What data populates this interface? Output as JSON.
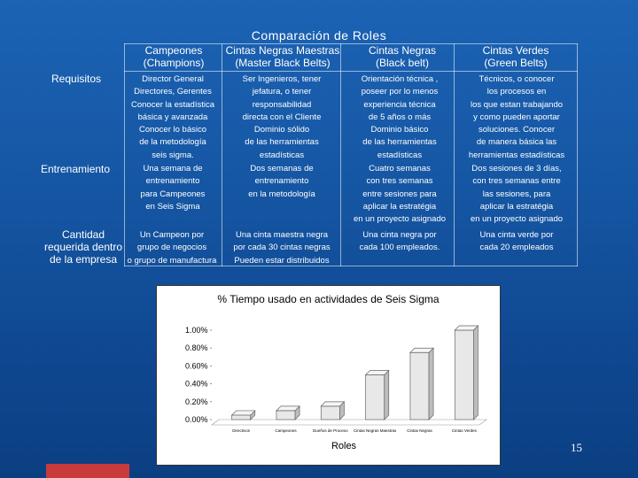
{
  "title": "Comparación de Roles",
  "headers": [
    {
      "line1": "Campeones",
      "line2": "(Champions)"
    },
    {
      "line1": "Cintas Negras Maestras",
      "line2": "(Master Black Belts)"
    },
    {
      "line1": "Cintas Negras",
      "line2": "(Black belt)"
    },
    {
      "line1": "Cintas Verdes",
      "line2": "(Green Belts)"
    }
  ],
  "row_labels": {
    "requisitos": "Requisitos",
    "entrenamiento": "Entrenamiento",
    "cantidad": [
      "Cantidad",
      "requerida dentro",
      "de la empresa"
    ]
  },
  "requisitos": [
    [
      "Director General",
      "Directores, Gerentes",
      "Conocer la estadística",
      "básica y avanzada",
      "Conocer lo básico",
      "de la metodología",
      "seis sigma."
    ],
    [
      "Ser Ingenieros, tener",
      "jefatura, o tener",
      "responsabilidad",
      "directa con el Cliente",
      "Dominio sólido",
      "de las herramientas",
      "estadísticas"
    ],
    [
      "Orientación técnica ,",
      "poseer por lo menos",
      "experiencia técnica",
      "de 5 años o más",
      "Dominio básico",
      "de las herramientas",
      "estadísticas"
    ],
    [
      "Técnicos, o conocer",
      "los procesos en",
      "los que estan trabajando",
      "y como pueden aportar",
      "soluciones. Conocer",
      "de manera básica las",
      "herramientas estadísticas"
    ]
  ],
  "entrenamiento": [
    [
      "Una semana de",
      "entrenamiento",
      "para Campeones",
      "en Seis Sigma"
    ],
    [
      "Dos semanas de",
      "entrenamiento",
      "en la metodología"
    ],
    [
      "Cuatro semanas",
      "con tres semanas",
      "entre sesiones para",
      "aplicar la estratégia",
      "en un proyecto asignado"
    ],
    [
      "Dos sesiones de 3 días,",
      "con tres semanas entre",
      "las sesiones, para",
      "aplicar la estratégia",
      "en un proyecto asignado"
    ]
  ],
  "cantidad": [
    [
      "Un Campeon por",
      "grupo de negocios",
      "o grupo de manufactura"
    ],
    [
      "Una cinta maestra negra",
      "por cada 30 cintas negras",
      "Pueden estar distribuidos"
    ],
    [
      "Una cinta negra por",
      "cada 100 empleados."
    ],
    [
      "Una cinta verde por",
      "cada 20 empleados"
    ]
  ],
  "chart_data": {
    "type": "bar",
    "title": "% Tiempo usado en  actividades de Seis Sigma",
    "xlabel": "Roles",
    "ylabel": "",
    "categories": [
      "Directivos",
      "Campeones",
      "Dueños de Proceso",
      "Cintas Negras Maestras",
      "Cintas Negras",
      "Cintas Verdes"
    ],
    "values": [
      0.05,
      0.1,
      0.15,
      0.5,
      0.75,
      1.0
    ],
    "ylim": [
      0,
      1.0
    ],
    "yticks": [
      "0.00%",
      "0.20%",
      "0.40%",
      "0.60%",
      "0.80%",
      "1.00%"
    ],
    "grid": false,
    "bar_color": "#e8e8e8"
  },
  "page_number": "15",
  "colors": {
    "background": "#1556a3",
    "accent_bar": "#c93a3c",
    "grid_lines": "#ffffff"
  }
}
